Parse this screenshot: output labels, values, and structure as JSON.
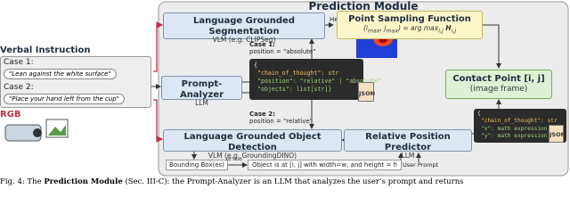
{
  "title": "Prediction Module",
  "verbal": {
    "title": "Verbal Instruction",
    "case1_label": "Case 1:",
    "case1_text": "\"Lean against the white surface\"",
    "case2_label": "Case 2:",
    "case2_text": "\"Place your hand left from the cup\""
  },
  "rgb": "RGB",
  "segmentation": {
    "title": "Language Grounded Segmentation",
    "subtitle": "VLM (e.g. CLIPSeg)"
  },
  "heatmap": {
    "label": "Heatmap",
    "symbol": "H"
  },
  "point_sampling": {
    "title": "Point Sampling Function",
    "formula": [
      "(i",
      "max",
      ", j",
      "max",
      ") = arg max",
      "i,j",
      " H",
      "i,j"
    ]
  },
  "prompt_analyzer": {
    "title": "Prompt-Analyzer",
    "subtitle": "LLM"
  },
  "case1": {
    "label": "Case 1:",
    "text": "position = \"absolute\""
  },
  "case2": {
    "label": "Case 2:",
    "text": "position = \"relative\""
  },
  "json1": {
    "lines": [
      "{",
      "\"chain_of_thought\": str",
      "\"position\": \"relative\" | \"absolute\"",
      "\"objects\": list[str]}"
    ],
    "icon": "JSON"
  },
  "contact_point": {
    "title": "Contact Point [i, j]",
    "subtitle": "(image frame)"
  },
  "detection": {
    "title": "Language Grounded Object Detection",
    "subtitle": "VLM (e.g. GroundingDINO)"
  },
  "relative": {
    "title": "Relative Position Predictor",
    "subtitle": "LLM"
  },
  "json2": {
    "lines": [
      "{",
      "\"chain_of_thought\": str",
      "\"x\": math expression",
      "\"y\": math expression}"
    ],
    "icon": "JSON"
  },
  "bottom": {
    "bbox": "Bounding Box(es)",
    "to_text": "to text",
    "object_text": "Object is at [i, j] with width=w, and height = h",
    "user_prompt": "User Prompt"
  },
  "caption": [
    "Fig. 4: The ",
    "Prediction Module",
    " (Sec. III-C): the Prompt-Analyzer is an LLM that analyzes the user’s prompt and returns"
  ]
}
